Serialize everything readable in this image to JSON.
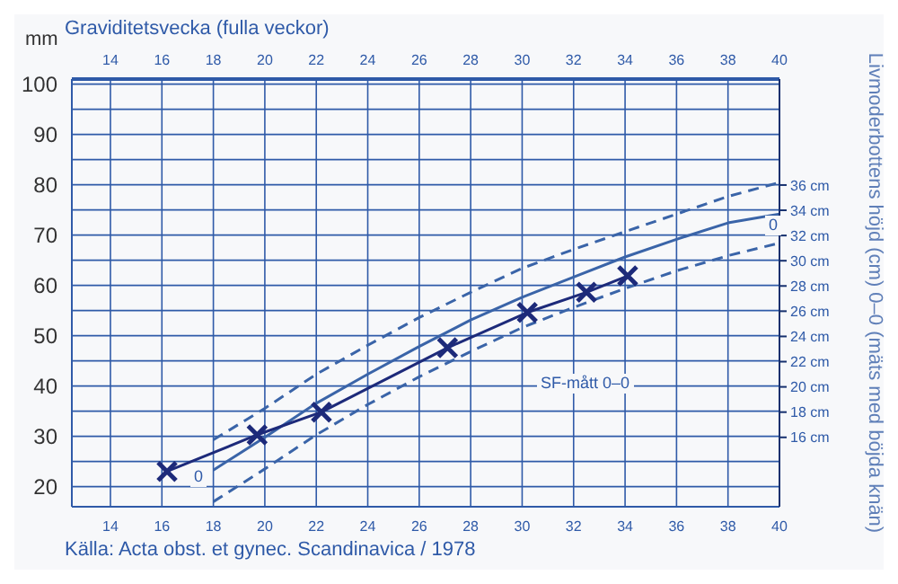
{
  "chart_data": {
    "type": "line",
    "xlabel": "Graviditetsvecka (fulla veckor)",
    "ylabel": "mm",
    "y2label": "Livmoderbottens höjd (cm) 0–0 (mäts med böjda knän)",
    "xlim": [
      12.5,
      40
    ],
    "xticks": [
      14,
      16,
      18,
      20,
      22,
      24,
      26,
      28,
      30,
      32,
      34,
      36,
      38,
      40
    ],
    "x2lim": [
      12.5,
      40
    ],
    "x2ticks": [
      14,
      16,
      18,
      20,
      22,
      24,
      26,
      28,
      30,
      32,
      34,
      36,
      38,
      40
    ],
    "ylim": [
      16,
      101
    ],
    "yticks": [
      20,
      {
        "value": 25,
        "label": null
      },
      30,
      {
        "value": 35,
        "label": null
      },
      40,
      {
        "value": 45,
        "label": null
      },
      50,
      {
        "value": 55,
        "label": null
      },
      60,
      {
        "value": 65,
        "label": null
      },
      70,
      {
        "value": 75,
        "label": null
      },
      80,
      {
        "value": 85,
        "label": null
      },
      90,
      {
        "value": 95,
        "label": null
      },
      100
    ],
    "y2lim": [
      10.5,
      44.4
    ],
    "y2ticks": [
      {
        "value": 16,
        "label": "16 cm"
      },
      {
        "value": 18,
        "label": "18 cm"
      },
      {
        "value": 20,
        "label": "20 cm"
      },
      {
        "value": 22,
        "label": "22 cm"
      },
      {
        "value": 24,
        "label": "24 cm"
      },
      {
        "value": 26,
        "label": "26 cm"
      },
      {
        "value": 28,
        "label": "28 cm"
      },
      {
        "value": 30,
        "label": "30 cm"
      },
      {
        "value": 32,
        "label": "32 cm"
      },
      {
        "value": 34,
        "label": "34 cm"
      },
      {
        "value": 36,
        "label": "36 cm"
      }
    ],
    "grid": true,
    "series": [
      {
        "axis": "y2",
        "color": "#3a64a8",
        "line_style": "solid",
        "marker": "none",
        "x": [
          18,
          20,
          22,
          24,
          26,
          28,
          30,
          32,
          34,
          36,
          38,
          40
        ],
        "values": [
          13.4,
          16.0,
          18.7,
          21.0,
          23.2,
          25.3,
          27.1,
          28.7,
          30.3,
          31.7,
          33.0,
          33.7
        ]
      },
      {
        "axis": "y2",
        "color": "#3a64a8",
        "line_style": "dashed",
        "marker": "none",
        "x": [
          18,
          20,
          22,
          24,
          26,
          28,
          30,
          32,
          34,
          36,
          38,
          40
        ],
        "values": [
          15.8,
          18.3,
          21.0,
          23.3,
          25.5,
          27.5,
          29.4,
          30.9,
          32.3,
          33.7,
          35.1,
          36.2
        ]
      },
      {
        "axis": "y2",
        "color": "#3a64a8",
        "line_style": "dashed",
        "marker": "none",
        "x": [
          18,
          20,
          22,
          24,
          26,
          28,
          30,
          32,
          34,
          36,
          38,
          40
        ],
        "values": [
          10.9,
          13.5,
          16.2,
          18.6,
          20.8,
          22.8,
          24.7,
          26.3,
          27.8,
          29.2,
          30.4,
          31.4
        ]
      },
      {
        "axis": "y2",
        "color": "#1d2a7a",
        "line_style": "solid",
        "marker": "cross",
        "x": [
          16.2,
          19.7,
          22.2,
          27.1,
          30.2,
          32.5,
          34.1
        ],
        "values": [
          13.3,
          16.2,
          18.0,
          23.1,
          25.9,
          27.5,
          28.8
        ]
      }
    ],
    "annotations": [
      "0",
      "0",
      "SF-mått 0–0",
      "Källa: Acta obst. et gynec. Scandinavica / 1978"
    ]
  }
}
